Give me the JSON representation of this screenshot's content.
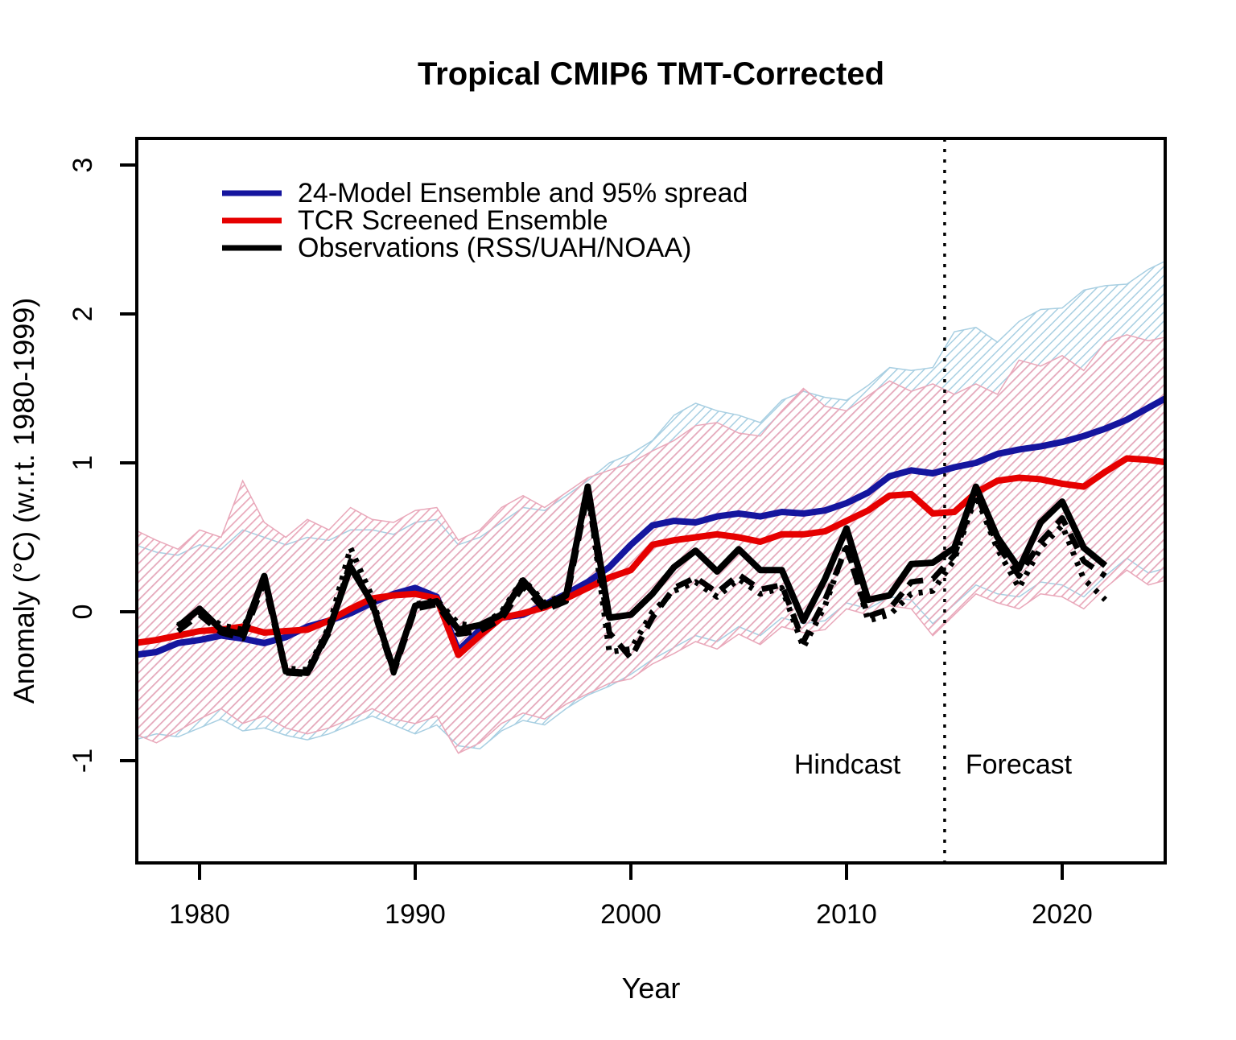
{
  "figure": {
    "title": "Tropical CMIP6 TMT-Corrected",
    "xlabel": "Year",
    "ylabel": "Anomaly (°C) (w.r.t. 1980-1999)"
  },
  "chart_data": {
    "type": "line",
    "title": "Tropical CMIP6 TMT-Corrected",
    "xlabel": "Year",
    "ylabel": "Anomaly (°C) (w.r.t. 1980-1999)",
    "x_ticks": [
      1980,
      1990,
      2000,
      2010,
      2020
    ],
    "y_ticks": [
      3,
      2,
      1,
      0,
      -1
    ],
    "xlim": [
      1977.1,
      2024.8
    ],
    "ylim": [
      -1.69,
      3.18
    ],
    "grid": false,
    "legend_position": "top-left-inside",
    "divider": {
      "year": 2014.55,
      "style": "dotted"
    },
    "annotations": [
      {
        "text": "Hindcast",
        "year": 2010.0,
        "value": -1.03
      },
      {
        "text": "Forecast",
        "year": 2018.0,
        "value": -1.03
      }
    ],
    "colors": {
      "ensemble_mean": "#15159e",
      "tcr_mean": "#e60000",
      "observations": "#000000",
      "ensemble_band_hatch": "#a8cfe2",
      "tcr_band_hatch": "#e9a8ba"
    },
    "legend": [
      {
        "label": "24-Model Ensemble and 95% spread",
        "color": "#15159e",
        "style": "solid"
      },
      {
        "label": "TCR Screened Ensemble",
        "color": "#e60000",
        "style": "solid"
      },
      {
        "label": "Observations (RSS/UAH/NOAA)",
        "color": "#000000",
        "style": "solid"
      }
    ],
    "band_years": [
      1977,
      1978,
      1979,
      1980,
      1981,
      1982,
      1983,
      1984,
      1985,
      1986,
      1987,
      1988,
      1989,
      1990,
      1991,
      1992,
      1993,
      1994,
      1995,
      1996,
      1997,
      1998,
      1999,
      2000,
      2001,
      2002,
      2003,
      2004,
      2005,
      2006,
      2007,
      2008,
      2009,
      2010,
      2011,
      2012,
      2013,
      2014,
      2015,
      2016,
      2017,
      2018,
      2019,
      2020,
      2021,
      2022,
      2023,
      2024,
      2025
    ],
    "bands": [
      {
        "name": "24-model ensemble 95% spread",
        "hatch_color": "#a8cfe2",
        "upper": [
          0.45,
          0.4,
          0.38,
          0.45,
          0.42,
          0.55,
          0.5,
          0.45,
          0.5,
          0.48,
          0.55,
          0.55,
          0.52,
          0.6,
          0.62,
          0.45,
          0.5,
          0.6,
          0.7,
          0.68,
          0.78,
          0.88,
          1.0,
          1.06,
          1.15,
          1.32,
          1.4,
          1.35,
          1.32,
          1.27,
          1.42,
          1.48,
          1.44,
          1.42,
          1.52,
          1.64,
          1.62,
          1.64,
          1.88,
          1.91,
          1.81,
          1.95,
          2.03,
          2.04,
          2.16,
          2.19,
          2.2,
          2.3,
          2.37
        ],
        "lower": [
          -0.86,
          -0.82,
          -0.84,
          -0.78,
          -0.72,
          -0.8,
          -0.78,
          -0.83,
          -0.86,
          -0.82,
          -0.76,
          -0.7,
          -0.76,
          -0.82,
          -0.76,
          -0.9,
          -0.92,
          -0.8,
          -0.73,
          -0.76,
          -0.65,
          -0.56,
          -0.5,
          -0.42,
          -0.32,
          -0.24,
          -0.16,
          -0.2,
          -0.1,
          -0.16,
          -0.04,
          -0.08,
          -0.06,
          0.06,
          0.02,
          0.1,
          0.08,
          -0.08,
          0.05,
          0.18,
          0.12,
          0.1,
          0.2,
          0.18,
          0.1,
          0.24,
          0.36,
          0.26,
          0.3
        ]
      },
      {
        "name": "TCR screened ensemble 95% spread",
        "hatch_color": "#e9a8ba",
        "upper": [
          0.55,
          0.48,
          0.42,
          0.55,
          0.5,
          0.88,
          0.6,
          0.5,
          0.62,
          0.55,
          0.7,
          0.62,
          0.6,
          0.68,
          0.7,
          0.48,
          0.55,
          0.7,
          0.78,
          0.7,
          0.8,
          0.9,
          0.95,
          1.0,
          1.08,
          1.15,
          1.25,
          1.27,
          1.2,
          1.18,
          1.35,
          1.5,
          1.38,
          1.35,
          1.45,
          1.55,
          1.48,
          1.53,
          1.46,
          1.53,
          1.46,
          1.69,
          1.65,
          1.72,
          1.62,
          1.81,
          1.86,
          1.82,
          1.85
        ],
        "lower": [
          -0.82,
          -0.88,
          -0.8,
          -0.72,
          -0.65,
          -0.75,
          -0.7,
          -0.78,
          -0.82,
          -0.78,
          -0.72,
          -0.65,
          -0.72,
          -0.75,
          -0.7,
          -0.95,
          -0.88,
          -0.75,
          -0.68,
          -0.72,
          -0.62,
          -0.55,
          -0.48,
          -0.45,
          -0.35,
          -0.28,
          -0.2,
          -0.25,
          -0.15,
          -0.22,
          -0.1,
          -0.14,
          -0.12,
          0.02,
          -0.02,
          0.04,
          0.02,
          -0.16,
          -0.02,
          0.12,
          0.06,
          0.02,
          0.12,
          0.1,
          0.02,
          0.16,
          0.28,
          0.18,
          0.22
        ]
      }
    ],
    "series": [
      {
        "name": "24-Model Ensemble mean",
        "color": "#15159e",
        "style": "solid",
        "width": 8,
        "years": [
          1977,
          1978,
          1979,
          1980,
          1981,
          1982,
          1983,
          1984,
          1985,
          1986,
          1987,
          1988,
          1989,
          1990,
          1991,
          1992,
          1993,
          1994,
          1995,
          1996,
          1997,
          1998,
          1999,
          2000,
          2001,
          2002,
          2003,
          2004,
          2005,
          2006,
          2007,
          2008,
          2009,
          2010,
          2011,
          2012,
          2013,
          2014,
          2015,
          2016,
          2017,
          2018,
          2019,
          2020,
          2021,
          2022,
          2023,
          2024,
          2025
        ],
        "values": [
          -0.29,
          -0.27,
          -0.21,
          -0.19,
          -0.16,
          -0.18,
          -0.21,
          -0.17,
          -0.1,
          -0.06,
          -0.01,
          0.06,
          0.12,
          0.16,
          0.1,
          -0.26,
          -0.12,
          -0.04,
          -0.02,
          0.05,
          0.12,
          0.2,
          0.3,
          0.45,
          0.58,
          0.61,
          0.6,
          0.64,
          0.66,
          0.64,
          0.67,
          0.66,
          0.68,
          0.73,
          0.8,
          0.91,
          0.95,
          0.93,
          0.97,
          1.0,
          1.06,
          1.09,
          1.11,
          1.14,
          1.18,
          1.23,
          1.29,
          1.37,
          1.45
        ]
      },
      {
        "name": "TCR Screened Ensemble mean",
        "color": "#e60000",
        "style": "solid",
        "width": 8,
        "years": [
          1977,
          1978,
          1979,
          1980,
          1981,
          1982,
          1983,
          1984,
          1985,
          1986,
          1987,
          1988,
          1989,
          1990,
          1991,
          1992,
          1993,
          1994,
          1995,
          1996,
          1997,
          1998,
          1999,
          2000,
          2001,
          2002,
          2003,
          2004,
          2005,
          2006,
          2007,
          2008,
          2009,
          2010,
          2011,
          2012,
          2013,
          2014,
          2015,
          2016,
          2017,
          2018,
          2019,
          2020,
          2021,
          2022,
          2023,
          2024,
          2025
        ],
        "values": [
          -0.21,
          -0.19,
          -0.16,
          -0.13,
          -0.12,
          -0.1,
          -0.14,
          -0.13,
          -0.12,
          -0.06,
          0.02,
          0.09,
          0.11,
          0.12,
          0.09,
          -0.29,
          -0.16,
          -0.04,
          -0.01,
          0.03,
          0.09,
          0.16,
          0.23,
          0.28,
          0.45,
          0.48,
          0.5,
          0.52,
          0.5,
          0.47,
          0.52,
          0.52,
          0.54,
          0.61,
          0.68,
          0.78,
          0.79,
          0.66,
          0.67,
          0.8,
          0.88,
          0.9,
          0.89,
          0.86,
          0.84,
          0.94,
          1.03,
          1.02,
          1.0
        ]
      },
      {
        "name": "Observations RSS",
        "color": "#000000",
        "style": "solid",
        "width": 8,
        "years": [
          1979,
          1980,
          1981,
          1982,
          1983,
          1984,
          1985,
          1986,
          1987,
          1988,
          1989,
          1990,
          1991,
          1992,
          1993,
          1994,
          1995,
          1996,
          1997,
          1998,
          1999,
          2000,
          2001,
          2002,
          2003,
          2004,
          2005,
          2006,
          2007,
          2008,
          2009,
          2010,
          2011,
          2012,
          2013,
          2014,
          2015,
          2016,
          2017,
          2018,
          2019,
          2020,
          2021,
          2022
        ],
        "values": [
          -0.1,
          0.02,
          -0.12,
          -0.15,
          0.24,
          -0.4,
          -0.41,
          -0.12,
          0.3,
          0.06,
          -0.39,
          0.04,
          0.07,
          -0.12,
          -0.09,
          -0.02,
          0.21,
          0.04,
          0.11,
          0.84,
          -0.04,
          -0.02,
          0.12,
          0.3,
          0.41,
          0.27,
          0.42,
          0.28,
          0.28,
          -0.06,
          0.22,
          0.56,
          0.08,
          0.11,
          0.32,
          0.33,
          0.43,
          0.84,
          0.5,
          0.29,
          0.6,
          0.74,
          0.43,
          0.31
        ]
      },
      {
        "name": "Observations UAH",
        "color": "#000000",
        "style": "dashed",
        "width": 7,
        "years": [
          1979,
          1980,
          1981,
          1982,
          1983,
          1984,
          1985,
          1986,
          1987,
          1988,
          1989,
          1990,
          1991,
          1992,
          1993,
          1994,
          1995,
          1996,
          1997,
          1998,
          1999,
          2000,
          2001,
          2002,
          2003,
          2004,
          2005,
          2006,
          2007,
          2008,
          2009,
          2010,
          2011,
          2012,
          2013,
          2014,
          2015,
          2016,
          2017,
          2018,
          2019,
          2020,
          2021,
          2022
        ],
        "values": [
          -0.13,
          -0.02,
          -0.14,
          -0.18,
          0.2,
          -0.41,
          -0.42,
          -0.14,
          0.34,
          0.04,
          -0.41,
          0.02,
          0.05,
          -0.15,
          -0.13,
          -0.05,
          0.17,
          0.01,
          0.07,
          0.8,
          -0.14,
          -0.31,
          -0.04,
          0.16,
          0.23,
          0.13,
          0.25,
          0.15,
          0.18,
          -0.2,
          0.08,
          0.43,
          -0.03,
          0.02,
          0.2,
          0.22,
          0.38,
          0.8,
          0.45,
          0.24,
          0.47,
          0.63,
          0.34,
          0.24
        ]
      },
      {
        "name": "Observations NOAA",
        "color": "#000000",
        "style": "dotted",
        "width": 7,
        "years": [
          1979,
          1980,
          1981,
          1982,
          1983,
          1984,
          1985,
          1986,
          1987,
          1988,
          1989,
          1990,
          1991,
          1992,
          1993,
          1994,
          1995,
          1996,
          1997,
          1998,
          1999,
          2000,
          2001,
          2002,
          2003,
          2004,
          2005,
          2006,
          2007,
          2008,
          2009,
          2010,
          2011,
          2012,
          2013,
          2014,
          2015,
          2016,
          2017,
          2018,
          2019,
          2020,
          2021,
          2022
        ],
        "values": [
          -0.09,
          0.0,
          -0.09,
          -0.12,
          0.22,
          -0.38,
          -0.39,
          -0.1,
          0.43,
          0.1,
          -0.4,
          0.05,
          0.08,
          -0.08,
          -0.1,
          0.0,
          0.22,
          0.06,
          0.12,
          0.83,
          -0.27,
          -0.25,
          0.0,
          0.14,
          0.2,
          0.1,
          0.22,
          0.12,
          0.16,
          -0.24,
          0.04,
          0.45,
          -0.06,
          -0.02,
          0.12,
          0.14,
          0.35,
          0.78,
          0.42,
          0.16,
          0.43,
          0.58,
          0.22,
          0.08
        ]
      }
    ]
  }
}
